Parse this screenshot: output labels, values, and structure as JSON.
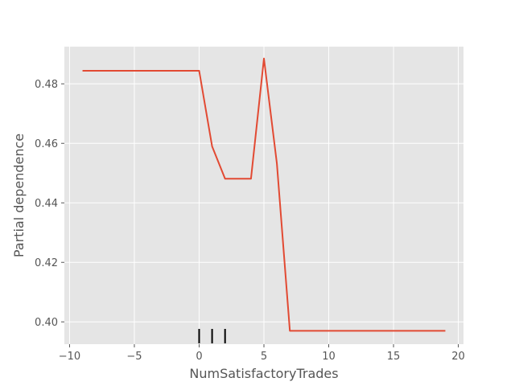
{
  "chart_data": {
    "type": "line",
    "xlabel": "NumSatisfactoryTrades",
    "ylabel": "Partial dependence",
    "xlim": [
      -10.4,
      20.4
    ],
    "ylim": [
      0.3925,
      0.4925
    ],
    "x_ticks": [
      -10,
      -5,
      0,
      5,
      10,
      15,
      20
    ],
    "x_tick_labels": [
      "−10",
      "−5",
      "0",
      "5",
      "10",
      "15",
      "20"
    ],
    "y_ticks": [
      0.4,
      0.42,
      0.44,
      0.46,
      0.48
    ],
    "y_tick_labels": [
      "0.40",
      "0.42",
      "0.44",
      "0.46",
      "0.48"
    ],
    "grid": true,
    "series": [
      {
        "color": "#e24a33",
        "x": [
          -9,
          0,
          1,
          2,
          3,
          4,
          5,
          6,
          7,
          8,
          19
        ],
        "y": [
          0.4844,
          0.4844,
          0.459,
          0.4481,
          0.4481,
          0.4481,
          0.4885,
          0.4532,
          0.397,
          0.397,
          0.397
        ]
      }
    ],
    "rug_x": [
      0,
      1,
      2
    ],
    "colors": {
      "background": "#e5e5e5",
      "grid": "#ffffff",
      "rug": "#000000"
    }
  }
}
